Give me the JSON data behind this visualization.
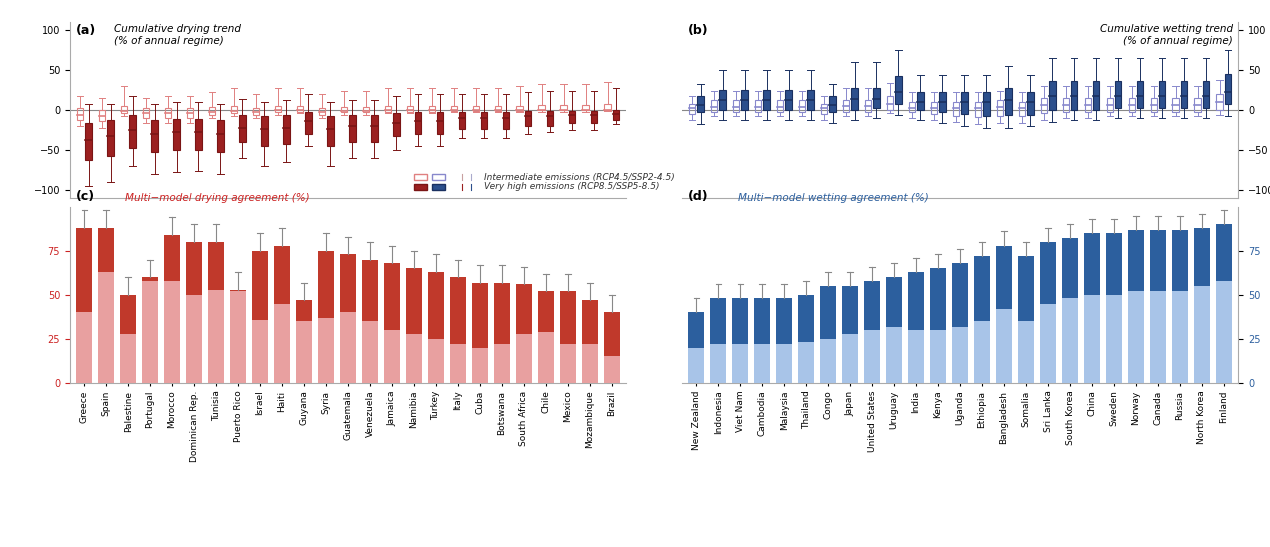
{
  "drying_countries": [
    "Greece",
    "Spain",
    "Palestine",
    "Portugal",
    "Morocco",
    "Dominican Rep.",
    "Tunisia",
    "Puerto Rico",
    "Israel",
    "Haiti",
    "Guyana",
    "Syria",
    "Guatemala",
    "Venezuela",
    "Jamaica",
    "Namibia",
    "Turkey",
    "Italy",
    "Cuba",
    "Botswana",
    "South Africa",
    "Chile",
    "Mexico",
    "Mozambique",
    "Brazil"
  ],
  "drying_rcp45": {
    "whisker_low": [
      -20,
      -22,
      -8,
      -16,
      -16,
      -16,
      -10,
      -8,
      -10,
      -6,
      -4,
      -10,
      -6,
      -6,
      -4,
      -4,
      -4,
      -3,
      -3,
      -3,
      -2,
      -2,
      -2,
      -2,
      -1
    ],
    "q1": [
      -12,
      -14,
      -4,
      -10,
      -10,
      -10,
      -6,
      -4,
      -6,
      -3,
      -2,
      -6,
      -3,
      -3,
      -2,
      -2,
      -2,
      -1,
      -1,
      -1,
      -1,
      -0.5,
      -0.5,
      -0.5,
      -0.3
    ],
    "median": [
      -6,
      -7,
      -1,
      -4,
      -4,
      -4,
      -2,
      -1,
      -2,
      -0.5,
      -0.5,
      -2,
      -1,
      -1,
      -0.5,
      -0.5,
      -0.5,
      -0.2,
      -0.2,
      -0.2,
      -0.2,
      -0.1,
      -0.1,
      -0.1,
      0
    ],
    "q3": [
      2,
      0,
      5,
      2,
      3,
      3,
      4,
      5,
      3,
      5,
      5,
      3,
      4,
      4,
      5,
      5,
      5,
      5,
      5,
      5,
      5,
      6,
      6,
      6,
      7
    ],
    "whisker_high": [
      18,
      15,
      30,
      15,
      18,
      18,
      22,
      28,
      20,
      28,
      28,
      20,
      24,
      24,
      28,
      28,
      28,
      28,
      28,
      28,
      30,
      32,
      32,
      32,
      35
    ]
  },
  "drying_rcp85": {
    "whisker_low": [
      -95,
      -90,
      -70,
      -80,
      -78,
      -76,
      -80,
      -60,
      -70,
      -65,
      -45,
      -70,
      -60,
      -60,
      -50,
      -45,
      -45,
      -35,
      -35,
      -35,
      -30,
      -28,
      -25,
      -25,
      -18
    ],
    "q1": [
      -62,
      -58,
      -47,
      -52,
      -50,
      -50,
      -52,
      -40,
      -45,
      -42,
      -30,
      -45,
      -40,
      -40,
      -32,
      -30,
      -30,
      -24,
      -24,
      -24,
      -20,
      -20,
      -16,
      -16,
      -13
    ],
    "median": [
      -38,
      -33,
      -25,
      -30,
      -28,
      -28,
      -30,
      -22,
      -24,
      -22,
      -14,
      -24,
      -20,
      -20,
      -16,
      -14,
      -14,
      -10,
      -10,
      -10,
      -8,
      -7,
      -6,
      -6,
      -5
    ],
    "q3": [
      -16,
      -13,
      -6,
      -13,
      -11,
      -11,
      -13,
      -6,
      -8,
      -6,
      -3,
      -8,
      -6,
      -6,
      -4,
      -3,
      -3,
      -2,
      -2,
      -2,
      -1,
      -1,
      -1,
      -1,
      0
    ],
    "whisker_high": [
      8,
      8,
      18,
      8,
      10,
      10,
      8,
      14,
      10,
      12,
      20,
      10,
      12,
      12,
      18,
      20,
      20,
      20,
      20,
      20,
      22,
      24,
      24,
      24,
      28
    ]
  },
  "wetting_countries": [
    "New Zealand",
    "Indonesia",
    "Viet Nam",
    "Cambodia",
    "Malaysia",
    "Thailand",
    "Congo",
    "Japan",
    "United States",
    "Uruguay",
    "India",
    "Kenya",
    "Uganda",
    "Ethiopia",
    "Bangladesh",
    "Somalia",
    "Sri Lanka",
    "South Korea",
    "China",
    "Sweden",
    "Norway",
    "Canada",
    "Russia",
    "North Korea",
    "Finland"
  ],
  "wetting_rcp45": {
    "whisker_low": [
      -12,
      -8,
      -8,
      -8,
      -8,
      -8,
      -12,
      -8,
      -8,
      -4,
      -10,
      -12,
      -15,
      -18,
      -16,
      -16,
      -12,
      -10,
      -10,
      -8,
      -8,
      -8,
      -8,
      -8,
      -6
    ],
    "q1": [
      -5,
      -2,
      -2,
      -2,
      -2,
      -2,
      -5,
      -2,
      -2,
      0,
      -3,
      -5,
      -7,
      -9,
      -8,
      -8,
      -4,
      -3,
      -3,
      -2,
      -2,
      -2,
      -2,
      -2,
      0
    ],
    "median": [
      2,
      4,
      4,
      4,
      4,
      4,
      2,
      5,
      5,
      8,
      2,
      2,
      2,
      2,
      4,
      2,
      6,
      6,
      6,
      6,
      6,
      6,
      6,
      6,
      10
    ],
    "q3": [
      8,
      12,
      12,
      12,
      12,
      12,
      8,
      13,
      13,
      18,
      10,
      10,
      10,
      10,
      12,
      10,
      15,
      15,
      15,
      15,
      15,
      15,
      15,
      15,
      20
    ],
    "whisker_high": [
      18,
      24,
      24,
      24,
      24,
      24,
      18,
      28,
      28,
      34,
      22,
      22,
      22,
      22,
      24,
      22,
      30,
      30,
      30,
      30,
      30,
      30,
      30,
      30,
      38
    ]
  },
  "wetting_rcp85": {
    "whisker_low": [
      -18,
      -12,
      -12,
      -12,
      -12,
      -12,
      -16,
      -12,
      -10,
      -6,
      -13,
      -16,
      -20,
      -23,
      -22,
      -20,
      -15,
      -13,
      -13,
      -10,
      -10,
      -10,
      -10,
      -10,
      -8
    ],
    "q1": [
      -3,
      0,
      0,
      0,
      0,
      0,
      -3,
      0,
      2,
      7,
      0,
      -3,
      -5,
      -8,
      -6,
      -6,
      0,
      0,
      0,
      2,
      2,
      2,
      2,
      2,
      7
    ],
    "median": [
      6,
      12,
      12,
      12,
      12,
      12,
      6,
      14,
      14,
      22,
      10,
      10,
      10,
      10,
      12,
      10,
      17,
      17,
      17,
      17,
      17,
      17,
      17,
      17,
      22
    ],
    "q3": [
      17,
      25,
      25,
      25,
      25,
      25,
      17,
      28,
      28,
      42,
      22,
      22,
      22,
      22,
      28,
      22,
      36,
      36,
      36,
      36,
      36,
      36,
      36,
      36,
      45
    ],
    "whisker_high": [
      32,
      50,
      50,
      50,
      50,
      50,
      32,
      60,
      60,
      75,
      44,
      44,
      44,
      44,
      55,
      44,
      65,
      65,
      65,
      65,
      65,
      65,
      65,
      65,
      75
    ]
  },
  "drying_agreement_rcp85": [
    88,
    88,
    50,
    60,
    84,
    80,
    80,
    53,
    75,
    78,
    47,
    75,
    73,
    70,
    68,
    65,
    63,
    60,
    57,
    57,
    56,
    52,
    52,
    47,
    40
  ],
  "drying_agreement_rcp45": [
    40,
    63,
    28,
    58,
    58,
    50,
    53,
    52,
    36,
    45,
    35,
    37,
    40,
    35,
    30,
    28,
    25,
    22,
    20,
    22,
    28,
    29,
    22,
    22,
    15
  ],
  "wetting_agreement_rcp85": [
    40,
    48,
    48,
    48,
    48,
    50,
    55,
    55,
    58,
    60,
    63,
    65,
    68,
    72,
    78,
    72,
    80,
    82,
    85,
    85,
    87,
    87,
    87,
    88,
    90
  ],
  "wetting_agreement_rcp45": [
    20,
    22,
    22,
    22,
    22,
    23,
    25,
    28,
    30,
    32,
    30,
    30,
    32,
    35,
    42,
    35,
    45,
    48,
    50,
    50,
    52,
    52,
    52,
    55,
    58
  ],
  "panel_a_label": "(a)",
  "panel_b_label": "(b)",
  "panel_c_label": "(c)",
  "panel_d_label": "(d)",
  "panel_a_title": "Cumulative drying trend\n(% of annual regime)",
  "panel_b_title": "Cumulative wetting trend\n(% of annual regime)",
  "panel_c_title": "Multi−model drying agreement (%)",
  "panel_d_title": "Multi−model wetting agreement (%)",
  "color_rcp45_dry_face": "none",
  "color_rcp45_dry_edge": "#e8888888",
  "color_rcp85_dry_face": "#9b2020",
  "color_rcp85_dry_edge": "#7a1515",
  "color_rcp45_wet_face": "none",
  "color_rcp45_wet_edge": "#8888cc88",
  "color_rcp85_wet_face": "#2c4f8c",
  "color_rcp85_wet_edge": "#1a3060",
  "color_bar_dry_dark": "#c0392b",
  "color_bar_dry_light": "#e8a0a0",
  "color_bar_wet_dark": "#2c5f9e",
  "color_bar_wet_light": "#a8c4e8",
  "legend_rcp45_label": "Intermediate emissions (RCP4.5/SSP2-4.5)",
  "legend_rcp85_label": "Very high emissions (RCP8.5/SSP5-8.5)"
}
